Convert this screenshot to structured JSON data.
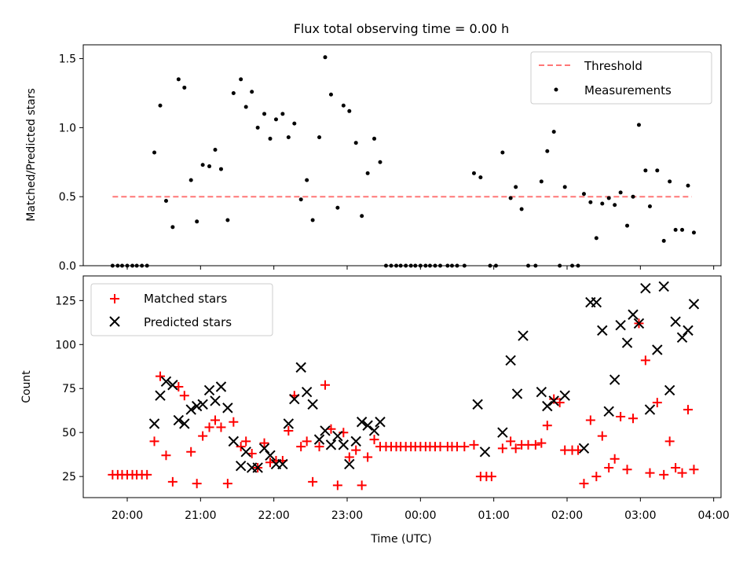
{
  "chart_data": [
    {
      "type": "scatter",
      "title": "Flux total observing time = 0.00 h",
      "xlabel": "",
      "ylabel": "Matched/Predicted stars",
      "ylim": [
        0,
        1.6
      ],
      "yticks": [
        0.0,
        0.5,
        1.0,
        1.5
      ],
      "ytick_labels": [
        "0.0",
        "0.5",
        "1.0",
        "1.5"
      ],
      "xlim_hours": [
        19.4,
        28.1
      ],
      "xticks_hours": [
        20,
        21,
        22,
        23,
        24,
        25,
        26,
        27,
        28
      ],
      "threshold": {
        "name": "Threshold",
        "value": 0.5,
        "x_start_hours": 19.8,
        "x_end_hours": 27.7,
        "color": "#ff7777"
      },
      "legend": {
        "placement": "top-right",
        "entries": [
          "Threshold",
          "Measurements"
        ]
      },
      "series": [
        {
          "name": "Measurements",
          "color": "#000000",
          "marker": "dot",
          "points": [
            [
              19.8,
              0
            ],
            [
              19.87,
              0
            ],
            [
              19.93,
              0
            ],
            [
              20,
              0
            ],
            [
              20.07,
              0
            ],
            [
              20.13,
              0
            ],
            [
              20.2,
              0
            ],
            [
              20.27,
              0
            ],
            [
              20.37,
              0.82
            ],
            [
              20.45,
              1.16
            ],
            [
              20.53,
              0.47
            ],
            [
              20.62,
              0.28
            ],
            [
              20.7,
              1.35
            ],
            [
              20.78,
              1.29
            ],
            [
              20.87,
              0.62
            ],
            [
              20.95,
              0.32
            ],
            [
              21.03,
              0.73
            ],
            [
              21.12,
              0.72
            ],
            [
              21.2,
              0.84
            ],
            [
              21.28,
              0.7
            ],
            [
              21.37,
              0.33
            ],
            [
              21.45,
              1.25
            ],
            [
              21.55,
              1.35
            ],
            [
              21.62,
              1.15
            ],
            [
              21.7,
              1.26
            ],
            [
              21.78,
              1.0
            ],
            [
              21.87,
              1.1
            ],
            [
              21.95,
              0.92
            ],
            [
              22.03,
              1.06
            ],
            [
              22.12,
              1.1
            ],
            [
              22.2,
              0.93
            ],
            [
              22.28,
              1.03
            ],
            [
              22.37,
              0.48
            ],
            [
              22.45,
              0.62
            ],
            [
              22.53,
              0.33
            ],
            [
              22.62,
              0.93
            ],
            [
              22.7,
              1.51
            ],
            [
              22.78,
              1.24
            ],
            [
              22.87,
              0.42
            ],
            [
              22.95,
              1.16
            ],
            [
              23.03,
              1.12
            ],
            [
              23.12,
              0.89
            ],
            [
              23.2,
              0.36
            ],
            [
              23.28,
              0.67
            ],
            [
              23.37,
              0.92
            ],
            [
              23.45,
              0.75
            ],
            [
              23.53,
              0
            ],
            [
              23.6,
              0
            ],
            [
              23.67,
              0
            ],
            [
              23.73,
              0
            ],
            [
              23.8,
              0
            ],
            [
              23.87,
              0
            ],
            [
              23.93,
              0
            ],
            [
              24,
              0
            ],
            [
              24.07,
              0
            ],
            [
              24.13,
              0
            ],
            [
              24.2,
              0
            ],
            [
              24.27,
              0
            ],
            [
              24.37,
              0
            ],
            [
              24.43,
              0
            ],
            [
              24.5,
              0
            ],
            [
              24.6,
              0
            ],
            [
              24.73,
              0.67
            ],
            [
              24.82,
              0.64
            ],
            [
              24.95,
              0
            ],
            [
              25.03,
              0
            ],
            [
              25.12,
              0.82
            ],
            [
              25.23,
              0.49
            ],
            [
              25.3,
              0.57
            ],
            [
              25.38,
              0.41
            ],
            [
              25.47,
              0
            ],
            [
              25.57,
              0
            ],
            [
              25.65,
              0.61
            ],
            [
              25.73,
              0.83
            ],
            [
              25.82,
              0.97
            ],
            [
              25.9,
              0
            ],
            [
              25.97,
              0.57
            ],
            [
              26.07,
              0
            ],
            [
              26.15,
              0
            ],
            [
              26.23,
              0.52
            ],
            [
              26.32,
              0.46
            ],
            [
              26.4,
              0.2
            ],
            [
              26.48,
              0.45
            ],
            [
              26.57,
              0.49
            ],
            [
              26.65,
              0.44
            ],
            [
              26.73,
              0.53
            ],
            [
              26.82,
              0.29
            ],
            [
              26.9,
              0.5
            ],
            [
              26.98,
              1.02
            ],
            [
              27.07,
              0.69
            ],
            [
              27.13,
              0.43
            ],
            [
              27.23,
              0.69
            ],
            [
              27.32,
              0.18
            ],
            [
              27.4,
              0.61
            ],
            [
              27.48,
              0.26
            ],
            [
              27.57,
              0.26
            ],
            [
              27.65,
              0.58
            ],
            [
              27.73,
              0.24
            ]
          ]
        }
      ]
    },
    {
      "type": "scatter",
      "title": "",
      "xlabel": "Time (UTC)",
      "ylabel": "Count",
      "ylim": [
        13,
        139
      ],
      "yticks": [
        25,
        50,
        75,
        100,
        125
      ],
      "ytick_labels": [
        "25",
        "50",
        "75",
        "100",
        "125"
      ],
      "xlim_hours": [
        19.4,
        28.1
      ],
      "xticks_hours": [
        20,
        21,
        22,
        23,
        24,
        25,
        26,
        27,
        28
      ],
      "xtick_labels": [
        "20:00",
        "21:00",
        "22:00",
        "23:00",
        "00:00",
        "01:00",
        "02:00",
        "03:00",
        "04:00"
      ],
      "legend": {
        "placement": "top-left",
        "entries": [
          "Matched stars",
          "Predicted stars"
        ]
      },
      "series": [
        {
          "name": "Matched stars",
          "color": "#ff0000",
          "marker": "plus",
          "points": [
            [
              19.8,
              26
            ],
            [
              19.87,
              26
            ],
            [
              19.93,
              26
            ],
            [
              20,
              26
            ],
            [
              20.07,
              26
            ],
            [
              20.13,
              26
            ],
            [
              20.2,
              26
            ],
            [
              20.27,
              26
            ],
            [
              20.37,
              45
            ],
            [
              20.45,
              82
            ],
            [
              20.53,
              37
            ],
            [
              20.62,
              22
            ],
            [
              20.7,
              76
            ],
            [
              20.78,
              71
            ],
            [
              20.87,
              39
            ],
            [
              20.95,
              21
            ],
            [
              21.03,
              48
            ],
            [
              21.12,
              53
            ],
            [
              21.2,
              57
            ],
            [
              21.28,
              53
            ],
            [
              21.37,
              21
            ],
            [
              21.45,
              56
            ],
            [
              21.55,
              42
            ],
            [
              21.62,
              45
            ],
            [
              21.7,
              38
            ],
            [
              21.78,
              30
            ],
            [
              21.87,
              44
            ],
            [
              21.95,
              33
            ],
            [
              22.03,
              34
            ],
            [
              22.12,
              34
            ],
            [
              22.2,
              51
            ],
            [
              22.28,
              71
            ],
            [
              22.37,
              42
            ],
            [
              22.45,
              45
            ],
            [
              22.53,
              22
            ],
            [
              22.62,
              42
            ],
            [
              22.7,
              77
            ],
            [
              22.78,
              52
            ],
            [
              22.87,
              20
            ],
            [
              22.95,
              50
            ],
            [
              23.03,
              36
            ],
            [
              23.12,
              40
            ],
            [
              23.2,
              20
            ],
            [
              23.28,
              36
            ],
            [
              23.37,
              46
            ],
            [
              23.45,
              42
            ],
            [
              23.53,
              42
            ],
            [
              23.6,
              42
            ],
            [
              23.67,
              42
            ],
            [
              23.73,
              42
            ],
            [
              23.8,
              42
            ],
            [
              23.87,
              42
            ],
            [
              23.93,
              42
            ],
            [
              24,
              42
            ],
            [
              24.07,
              42
            ],
            [
              24.13,
              42
            ],
            [
              24.2,
              42
            ],
            [
              24.27,
              42
            ],
            [
              24.37,
              42
            ],
            [
              24.43,
              42
            ],
            [
              24.5,
              42
            ],
            [
              24.6,
              42
            ],
            [
              24.73,
              43
            ],
            [
              24.82,
              25
            ],
            [
              24.9,
              25
            ],
            [
              24.97,
              25
            ],
            [
              25.12,
              41
            ],
            [
              25.23,
              45
            ],
            [
              25.3,
              41
            ],
            [
              25.38,
              43
            ],
            [
              25.47,
              43
            ],
            [
              25.57,
              43
            ],
            [
              25.65,
              44
            ],
            [
              25.73,
              54
            ],
            [
              25.82,
              69
            ],
            [
              25.9,
              67
            ],
            [
              25.97,
              40
            ],
            [
              26.07,
              40
            ],
            [
              26.15,
              40
            ],
            [
              26.23,
              21
            ],
            [
              26.32,
              57
            ],
            [
              26.4,
              25
            ],
            [
              26.48,
              48
            ],
            [
              26.57,
              30
            ],
            [
              26.65,
              35
            ],
            [
              26.73,
              59
            ],
            [
              26.82,
              29
            ],
            [
              26.9,
              58
            ],
            [
              26.98,
              112
            ],
            [
              27.07,
              91
            ],
            [
              27.13,
              27
            ],
            [
              27.23,
              67
            ],
            [
              27.32,
              26
            ],
            [
              27.4,
              45
            ],
            [
              27.48,
              30
            ],
            [
              27.57,
              27
            ],
            [
              27.65,
              63
            ],
            [
              27.73,
              29
            ]
          ]
        },
        {
          "name": "Predicted stars",
          "color": "#000000",
          "marker": "x",
          "points": [
            [
              20.37,
              55
            ],
            [
              20.45,
              71
            ],
            [
              20.53,
              79
            ],
            [
              20.62,
              77
            ],
            [
              20.7,
              57
            ],
            [
              20.78,
              55
            ],
            [
              20.87,
              63
            ],
            [
              20.95,
              65
            ],
            [
              21.03,
              66
            ],
            [
              21.12,
              74
            ],
            [
              21.2,
              68
            ],
            [
              21.28,
              76
            ],
            [
              21.37,
              64
            ],
            [
              21.45,
              45
            ],
            [
              21.55,
              31
            ],
            [
              21.62,
              39
            ],
            [
              21.7,
              30
            ],
            [
              21.78,
              30
            ],
            [
              21.87,
              41
            ],
            [
              21.95,
              37
            ],
            [
              22.03,
              32
            ],
            [
              22.12,
              32
            ],
            [
              22.2,
              55
            ],
            [
              22.28,
              69
            ],
            [
              22.37,
              87
            ],
            [
              22.45,
              73
            ],
            [
              22.53,
              66
            ],
            [
              22.62,
              46
            ],
            [
              22.7,
              51
            ],
            [
              22.78,
              43
            ],
            [
              22.87,
              48
            ],
            [
              22.95,
              43
            ],
            [
              23.03,
              32
            ],
            [
              23.12,
              45
            ],
            [
              23.2,
              56
            ],
            [
              23.28,
              54
            ],
            [
              23.37,
              51
            ],
            [
              23.45,
              56
            ],
            [
              24.78,
              66
            ],
            [
              24.88,
              39
            ],
            [
              25.12,
              50
            ],
            [
              25.23,
              91
            ],
            [
              25.32,
              72
            ],
            [
              25.4,
              105
            ],
            [
              25.65,
              73
            ],
            [
              25.73,
              65
            ],
            [
              25.82,
              68
            ],
            [
              25.97,
              71
            ],
            [
              26.23,
              41
            ],
            [
              26.32,
              124
            ],
            [
              26.4,
              124
            ],
            [
              26.48,
              108
            ],
            [
              26.57,
              62
            ],
            [
              26.65,
              80
            ],
            [
              26.73,
              111
            ],
            [
              26.82,
              101
            ],
            [
              26.9,
              117
            ],
            [
              26.98,
              112
            ],
            [
              27.07,
              132
            ],
            [
              27.13,
              63
            ],
            [
              27.23,
              97
            ],
            [
              27.32,
              133
            ],
            [
              27.4,
              74
            ],
            [
              27.48,
              113
            ],
            [
              27.57,
              104
            ],
            [
              27.65,
              108
            ],
            [
              27.73,
              123
            ]
          ]
        }
      ]
    }
  ]
}
